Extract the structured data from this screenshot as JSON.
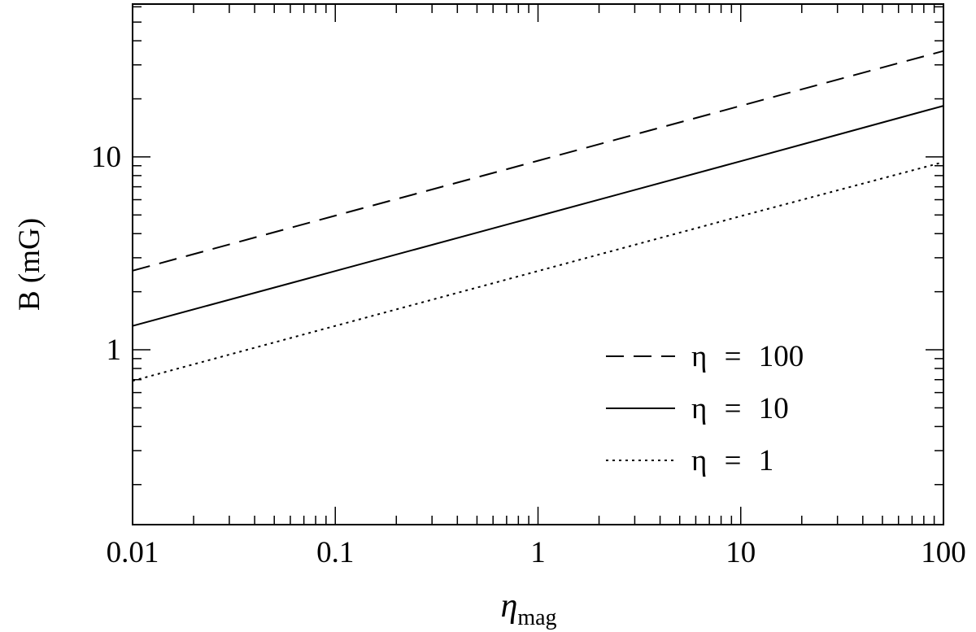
{
  "chart_data": {
    "type": "line",
    "ylabel": "B (mG)",
    "xlabel": "η",
    "xlabel_subscript": "mag",
    "x": [
      0.01,
      0.1,
      1,
      10,
      100
    ],
    "series": [
      {
        "name": "η = 100",
        "color": "#000000",
        "dash": "dashed",
        "values": [
          2.57,
          4.96,
          9.55,
          18.4,
          35.4
        ]
      },
      {
        "name": "η = 10",
        "color": "#000000",
        "dash": "solid",
        "values": [
          1.33,
          2.56,
          4.93,
          9.5,
          18.4
        ]
      },
      {
        "name": "η = 1",
        "color": "#000000",
        "dash": "dotted",
        "values": [
          0.69,
          1.33,
          2.56,
          4.93,
          9.4
        ]
      }
    ],
    "log_x": true,
    "log_y": true,
    "xlim": [
      0.01,
      100
    ],
    "ylim": [
      0.124,
      62
    ],
    "xticks": [
      0.01,
      0.1,
      1,
      10,
      100
    ],
    "yticks": [
      1,
      10
    ],
    "xminorticks": [
      0.02,
      0.03,
      0.04,
      0.05,
      0.06,
      0.07,
      0.08,
      0.09,
      0.2,
      0.3,
      0.4,
      0.5,
      0.6,
      0.7,
      0.8,
      0.9,
      2,
      3,
      4,
      5,
      6,
      7,
      8,
      9,
      20,
      30,
      40,
      50,
      60,
      70,
      80,
      90
    ],
    "yminorticks": [
      0.2,
      0.3,
      0.4,
      0.5,
      0.6,
      0.7,
      0.8,
      0.9,
      2,
      3,
      4,
      5,
      6,
      7,
      8,
      9,
      20,
      30,
      40,
      50,
      60
    ],
    "legend": "lower right",
    "grid": false
  }
}
